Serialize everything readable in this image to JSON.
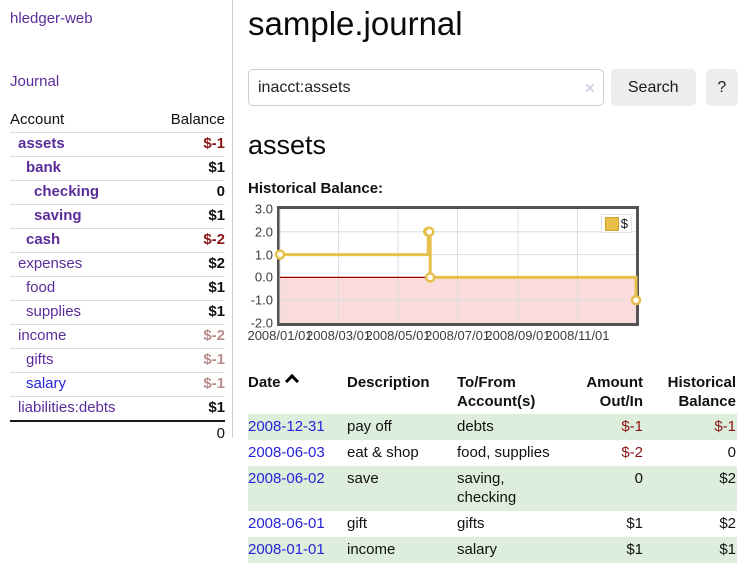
{
  "app": {
    "brand": "hledger-web"
  },
  "sidebar": {
    "journal_link": "Journal",
    "table": {
      "header_account": "Account",
      "header_balance": "Balance",
      "rows": [
        {
          "name": "assets",
          "balance": "$-1"
        },
        {
          "name": "bank",
          "balance": "$1"
        },
        {
          "name": "checking",
          "balance": "0"
        },
        {
          "name": "saving",
          "balance": "$1"
        },
        {
          "name": "cash",
          "balance": "$-2"
        },
        {
          "name": "expenses",
          "balance": "$2"
        },
        {
          "name": "food",
          "balance": "$1"
        },
        {
          "name": "supplies",
          "balance": "$1"
        },
        {
          "name": "income",
          "balance": "$-2"
        },
        {
          "name": "gifts",
          "balance": "$-1"
        },
        {
          "name": "salary",
          "balance": "$-1"
        },
        {
          "name": "liabilities:debts",
          "balance": "$1"
        }
      ],
      "total": "0"
    }
  },
  "main": {
    "title": "sample.journal",
    "search": {
      "value": "inacct:assets",
      "clear_icon": "×",
      "search_button": "Search",
      "help_button": "?"
    },
    "account_heading": "assets",
    "chart_title": "Historical Balance:"
  },
  "chart_data": {
    "type": "line",
    "step": true,
    "title": "Historical Balance:",
    "series": [
      {
        "name": "$",
        "color": "#e6c04a",
        "points": [
          [
            "2008-01-01",
            1
          ],
          [
            "2008-06-01",
            2
          ],
          [
            "2008-06-02",
            2
          ],
          [
            "2008-06-03",
            0
          ],
          [
            "2008-12-31",
            -1
          ]
        ]
      }
    ],
    "x_range": [
      "2008-01-01",
      "2008-12-31"
    ],
    "x_ticks": [
      "2008/01/01",
      "2008/03/01",
      "2008/05/01",
      "2008/07/01",
      "2008/09/01",
      "2008/11/01"
    ],
    "y_ticks": [
      "3.0",
      "2.0",
      "1.0",
      "0.0",
      "-1.0",
      "-2.0"
    ],
    "ylim": [
      -2,
      3
    ],
    "grid": true,
    "legend_position": "top-right",
    "gridline_color": "#dddddd",
    "negative_region_fill": "#fbdcdc",
    "zero_line_color": "#990000"
  },
  "register": {
    "headers": [
      "Date",
      "Description",
      "To/From Account(s)",
      "Amount Out/In",
      "Historical Balance"
    ],
    "rows": [
      {
        "date": "2008-12-31",
        "description": "pay off",
        "accounts": "debts",
        "amount": "$-1",
        "balance": "$-1"
      },
      {
        "date": "2008-06-03",
        "description": "eat & shop",
        "accounts": "food, supplies",
        "amount": "$-2",
        "balance": "0"
      },
      {
        "date": "2008-06-02",
        "description": "save",
        "accounts": "saving, checking",
        "amount": "0",
        "balance": "$2"
      },
      {
        "date": "2008-06-01",
        "description": "gift",
        "accounts": "gifts",
        "amount": "$1",
        "balance": "$2"
      },
      {
        "date": "2008-01-01",
        "description": "income",
        "accounts": "salary",
        "amount": "$1",
        "balance": "$1"
      }
    ]
  },
  "colors": {
    "link_purple": "#5c2d9a",
    "link_blue": "#2424d9",
    "negative": "#8b1515",
    "negative_dim": "#b98c8c",
    "row_stripe_green": "#ddeedd",
    "chart_line": "#e6c04a",
    "chart_border": "#545454",
    "negative_region_fill": "#fbdcdc",
    "zero_line": "#990000"
  }
}
